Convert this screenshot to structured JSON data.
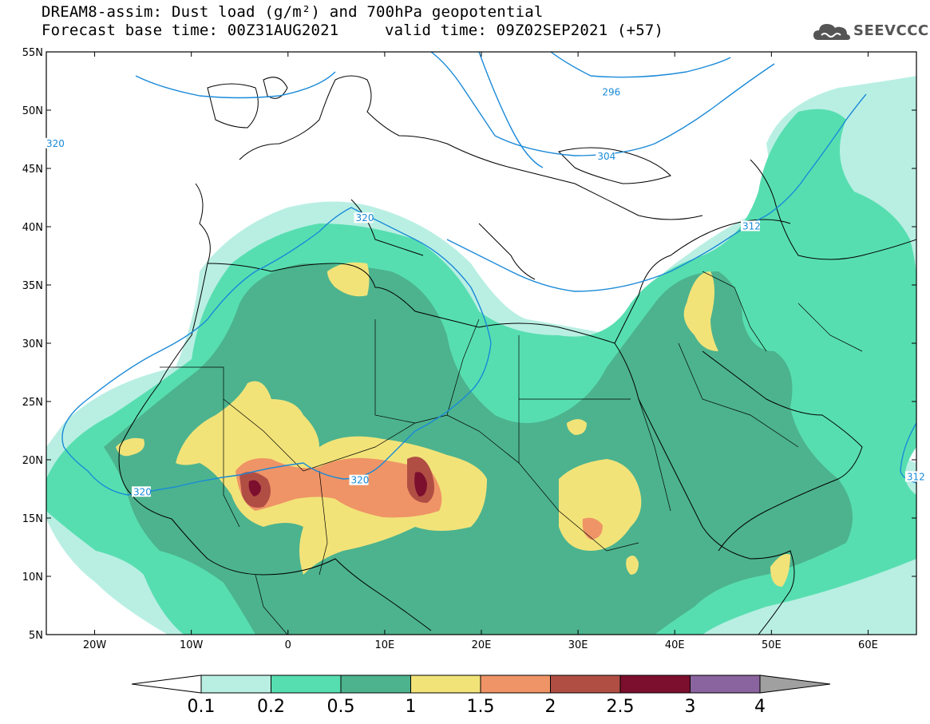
{
  "title_line1": "DREAM8-assim: Dust load (g/m²) and 700hPa geopotential",
  "title_line2_left": "Forecast base time: 00Z31AUG2021",
  "title_line2_right": "valid time: 09Z02SEP2021 (+57)",
  "logo_text": "SEEVCCC",
  "logo_icon": "cloud-icon",
  "lat_labels": [
    "55N",
    "50N",
    "45N",
    "40N",
    "35N",
    "30N",
    "25N",
    "20N",
    "15N",
    "10N",
    "5N"
  ],
  "lon_labels": [
    "20W",
    "10W",
    "0",
    "10E",
    "20E",
    "30E",
    "40E",
    "50E",
    "60E"
  ],
  "map_extent": {
    "lon": [
      -25,
      65
    ],
    "lat": [
      5,
      55
    ]
  },
  "colorbar": {
    "ticks": [
      "0.1",
      "0.2",
      "0.5",
      "1",
      "1.5",
      "2",
      "2.5",
      "3",
      "4"
    ],
    "colors": [
      "#b9efe3",
      "#57deb0",
      "#4cb38e",
      "#f2e379",
      "#ef9466",
      "#b14e44",
      "#7c0e2e",
      "#8a649e"
    ],
    "under_color": "#ffffff",
    "over_color": "#a0a0a0"
  },
  "contours": {
    "color": "#1a8ad8",
    "labels": [
      {
        "text": "320",
        "lon": -16,
        "lat": 17.1
      },
      {
        "text": "320",
        "lon": 6.5,
        "lat": 18.1
      },
      {
        "text": "320",
        "lon": 7,
        "lat": 40.6
      },
      {
        "text": "320",
        "lon": -25,
        "lat": 47.0
      },
      {
        "text": "296",
        "lon": 32.5,
        "lat": 51.4
      },
      {
        "text": "304",
        "lon": 32,
        "lat": 45.9
      },
      {
        "text": "312",
        "lon": 47,
        "lat": 39.9
      },
      {
        "text": "312",
        "lon": 64,
        "lat": 18.4
      }
    ]
  }
}
